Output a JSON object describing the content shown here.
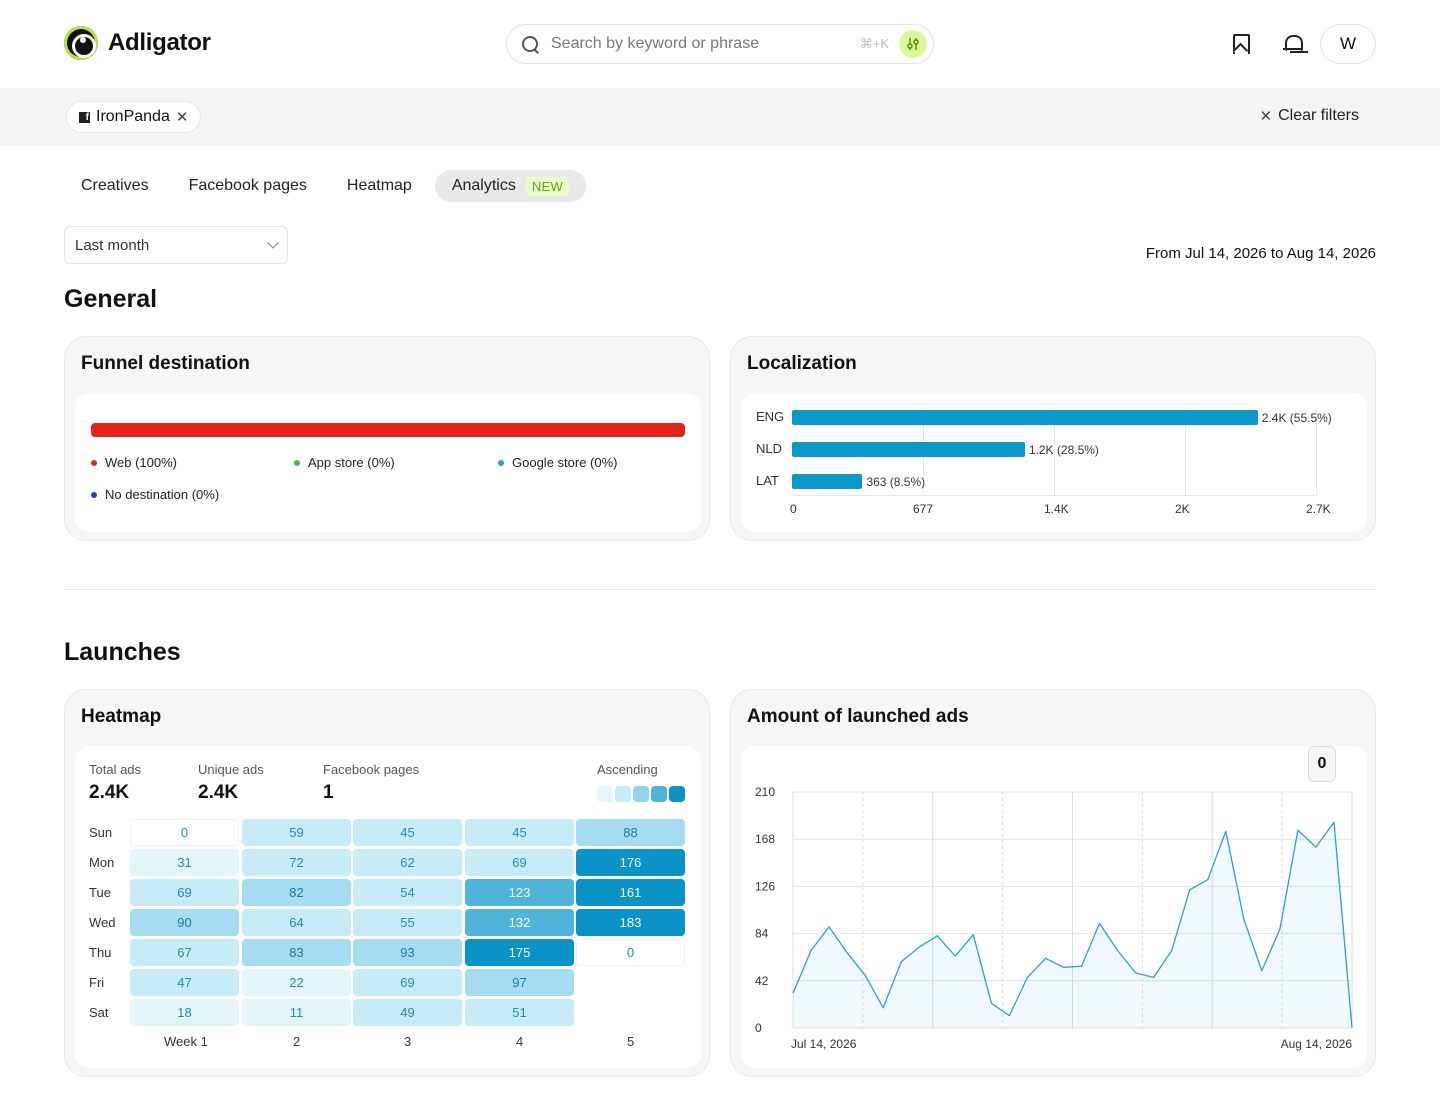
{
  "header": {
    "brand": "Adligator",
    "search_placeholder": "Search by keyword or phrase",
    "search_shortcut": "⌘+K",
    "avatar_initial": "W"
  },
  "filters": {
    "chip_label": "IronPanda",
    "clear_label": "Clear filters"
  },
  "tabs": [
    {
      "label": "Creatives"
    },
    {
      "label": "Facebook pages"
    },
    {
      "label": "Heatmap"
    },
    {
      "label": "Analytics",
      "badge": "NEW",
      "active": true
    }
  ],
  "period": {
    "selected": "Last month",
    "range_text": "From Jul 14, 2026 to Aug 14, 2026"
  },
  "general": {
    "title": "General",
    "funnel": {
      "title": "Funnel destination",
      "legend": [
        {
          "label": "Web (100%)",
          "color": "#e0261a"
        },
        {
          "label": "App store (0%)",
          "color": "#4caf50"
        },
        {
          "label": "Google store (0%)",
          "color": "#2aa0d8"
        },
        {
          "label": "No destination (0%)",
          "color": "#1a3fd9"
        }
      ]
    },
    "localization": {
      "title": "Localization",
      "rows": [
        {
          "lang": "ENG",
          "value": 2400,
          "label": "2.4K (55.5%)"
        },
        {
          "lang": "NLD",
          "value": 1200,
          "label": "1.2K (28.5%)"
        },
        {
          "lang": "LAT",
          "value": 363,
          "label": "363 (8.5%)"
        }
      ],
      "ticks": [
        "0",
        "677",
        "1.4K",
        "2K",
        "2.7K"
      ],
      "max": 2700,
      "bar_color": "#0b97c9"
    }
  },
  "launches": {
    "title": "Launches",
    "heatmap": {
      "title": "Heatmap",
      "stats": [
        {
          "label": "Total ads",
          "value": "2.4K"
        },
        {
          "label": "Unique ads",
          "value": "2.4K"
        },
        {
          "label": "Facebook pages",
          "value": "1"
        }
      ],
      "order_label": "Ascending",
      "days": [
        "Sun",
        "Mon",
        "Tue",
        "Wed",
        "Thu",
        "Fri",
        "Sat"
      ],
      "weeks": [
        "Week 1",
        "2",
        "3",
        "4",
        "5"
      ],
      "values": [
        [
          0,
          59,
          45,
          45,
          88
        ],
        [
          31,
          72,
          62,
          69,
          176
        ],
        [
          69,
          82,
          54,
          123,
          161
        ],
        [
          90,
          64,
          55,
          132,
          183
        ],
        [
          67,
          83,
          93,
          175,
          0
        ],
        [
          47,
          22,
          69,
          97,
          null
        ],
        [
          18,
          11,
          49,
          51,
          null
        ]
      ]
    },
    "line": {
      "title": "Amount of launched ads",
      "reset_label": "0",
      "color": "#2a9fd0"
    }
  },
  "chart_data": {
    "type": "line",
    "title": "Amount of launched ads",
    "xlabel": "",
    "ylabel": "",
    "x": [
      "Jul 14, 2026",
      "Jul 15, 2026",
      "Jul 16, 2026",
      "Jul 17, 2026",
      "Jul 18, 2026",
      "Jul 19, 2026",
      "Jul 20, 2026",
      "Jul 21, 2026",
      "Jul 22, 2026",
      "Jul 23, 2026",
      "Jul 24, 2026",
      "Jul 25, 2026",
      "Jul 26, 2026",
      "Jul 27, 2026",
      "Jul 28, 2026",
      "Jul 29, 2026",
      "Jul 30, 2026",
      "Jul 31, 2026",
      "Aug 1, 2026",
      "Aug 2, 2026",
      "Aug 3, 2026",
      "Aug 4, 2026",
      "Aug 5, 2026",
      "Aug 6, 2026",
      "Aug 7, 2026",
      "Aug 8, 2026",
      "Aug 9, 2026",
      "Aug 10, 2026",
      "Aug 11, 2026",
      "Aug 12, 2026",
      "Aug 13, 2026",
      "Aug 14, 2026"
    ],
    "x_tick_labels": [
      "Jul 14, 2026",
      "Aug 14, 2026"
    ],
    "series": [
      {
        "values": [
          31,
          69,
          90,
          67,
          47,
          18,
          59,
          72,
          82,
          64,
          83,
          22,
          11,
          45,
          62,
          54,
          55,
          93,
          69,
          49,
          45,
          69,
          123,
          132,
          175,
          97,
          51,
          88,
          176,
          161,
          183,
          0
        ]
      }
    ],
    "ylim": [
      0,
      210
    ],
    "yticks": [
      0,
      42,
      84,
      126,
      168,
      210
    ],
    "grid": true
  }
}
